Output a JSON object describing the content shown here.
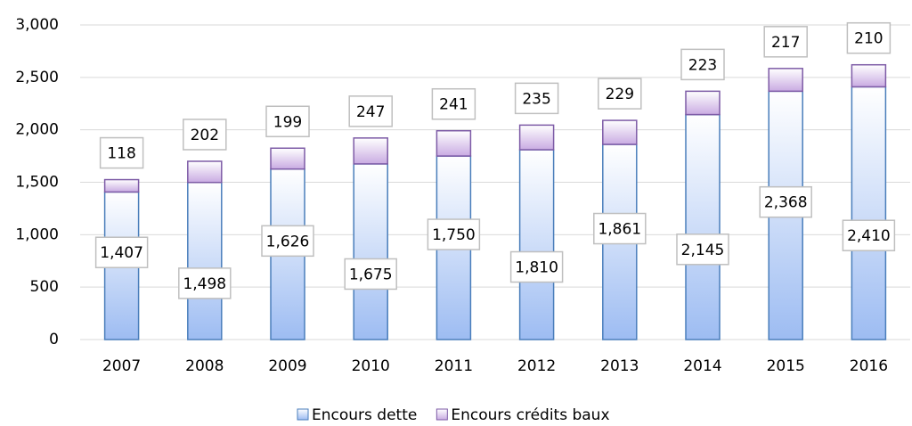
{
  "chart_data": {
    "type": "stacked_bar",
    "categories": [
      "2007",
      "2008",
      "2009",
      "2010",
      "2011",
      "2012",
      "2013",
      "2014",
      "2015",
      "2016"
    ],
    "series": [
      {
        "name": "Encours dette",
        "color": "#9dbcf2",
        "border": "#4a7ebb",
        "values": [
          1407,
          1498,
          1626,
          1675,
          1750,
          1810,
          1861,
          2145,
          2368,
          2410
        ],
        "value_labels": [
          "1,407",
          "1,498",
          "1,626",
          "1,675",
          "1,750",
          "1,810",
          "1,861",
          "2,145",
          "2,368",
          "2,410"
        ]
      },
      {
        "name": "Encours crédits baux",
        "color": "#c9abe2",
        "border": "#7d5ba6",
        "values": [
          118,
          202,
          199,
          247,
          241,
          235,
          229,
          223,
          217,
          210
        ]
      }
    ],
    "ylim": [
      0,
      3000
    ],
    "yticks": [
      0,
      500,
      {
        "value": 1000,
        "label": "1,000"
      },
      {
        "value": 1500,
        "label": "1,500"
      },
      {
        "value": 2000,
        "label": "2,000"
      },
      {
        "value": 2500,
        "label": "2,500"
      },
      {
        "value": 3000,
        "label": "3,000"
      }
    ],
    "grid": true,
    "legend": "bottom"
  }
}
